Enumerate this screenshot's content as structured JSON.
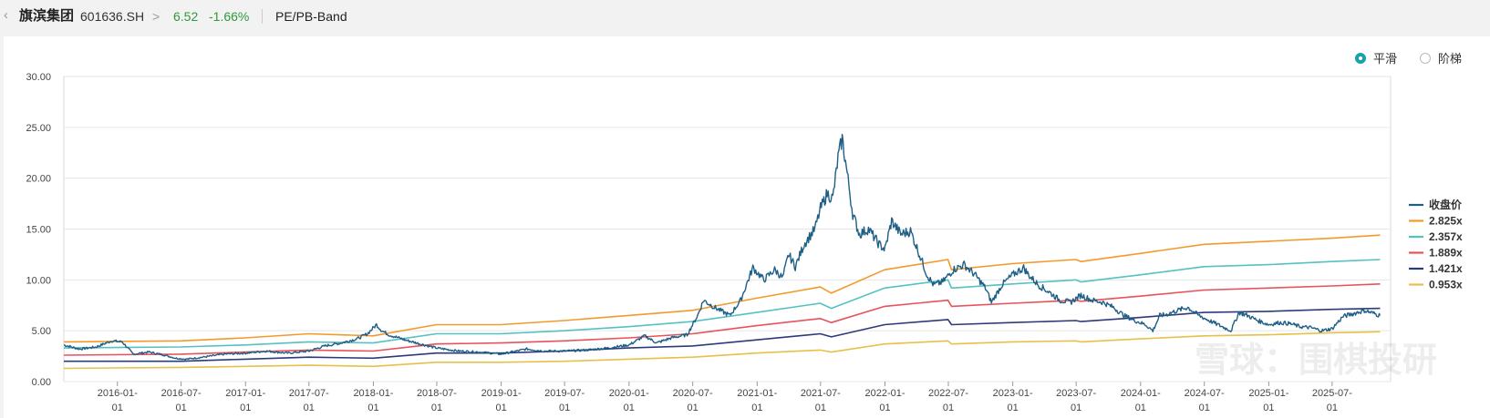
{
  "header": {
    "back_icon": "chevron-left-icon",
    "stock_name": "旗滨集团",
    "stock_code": "601636.SH",
    "separator": ">",
    "price": "6.52",
    "change": "-1.66%",
    "tab_label": "PE/PB-Band"
  },
  "toggle": {
    "smooth_label": "平滑",
    "step_label": "阶梯",
    "selected": "smooth",
    "accent_color": "#1aa0a8"
  },
  "watermark": "雪球：围棋投研",
  "chart_data": {
    "type": "line",
    "ylim": [
      0,
      30
    ],
    "yticks": [
      "0.00",
      "5.00",
      "10.00",
      "15.00",
      "20.00",
      "25.00",
      "30.00"
    ],
    "xlim": [
      "2015-08-01",
      "2025-12-15"
    ],
    "xticks": [
      {
        "date": "2016-01-01",
        "label": [
          "2016-01-",
          "01"
        ]
      },
      {
        "date": "2016-07-01",
        "label": [
          "2016-07-",
          "01"
        ]
      },
      {
        "date": "2017-01-01",
        "label": [
          "2017-01-",
          "01"
        ]
      },
      {
        "date": "2017-07-01",
        "label": [
          "2017-07-",
          "01"
        ]
      },
      {
        "date": "2018-01-01",
        "label": [
          "2018-01-",
          "01"
        ]
      },
      {
        "date": "2018-07-01",
        "label": [
          "2018-07-",
          "01"
        ]
      },
      {
        "date": "2019-01-01",
        "label": [
          "2019-01-",
          "01"
        ]
      },
      {
        "date": "2019-07-01",
        "label": [
          "2019-07-",
          "01"
        ]
      },
      {
        "date": "2020-01-01",
        "label": [
          "2020-01-",
          "01"
        ]
      },
      {
        "date": "2020-07-01",
        "label": [
          "2020-07-",
          "01"
        ]
      },
      {
        "date": "2021-01-01",
        "label": [
          "2021-01-",
          "01"
        ]
      },
      {
        "date": "2021-07-01",
        "label": [
          "2021-07-",
          "01"
        ]
      },
      {
        "date": "2022-01-01",
        "label": [
          "2022-01-",
          "01"
        ]
      },
      {
        "date": "2022-07-01",
        "label": [
          "2022-07-",
          "01"
        ]
      },
      {
        "date": "2023-01-01",
        "label": [
          "2023-01-",
          "01"
        ]
      },
      {
        "date": "2023-07-01",
        "label": [
          "2023-07-",
          "01"
        ]
      },
      {
        "date": "2024-01-01",
        "label": [
          "2024-01-",
          "01"
        ]
      },
      {
        "date": "2024-07-01",
        "label": [
          "2024-07-",
          "01"
        ]
      },
      {
        "date": "2025-01-01",
        "label": [
          "2025-01-",
          "01"
        ]
      },
      {
        "date": "2025-07-01",
        "label": [
          "2025-07-",
          "01"
        ]
      }
    ],
    "grid": true,
    "legend_position": "right",
    "series": [
      {
        "name": "收盘价",
        "color": "#1f5f86",
        "jitter": true,
        "points": [
          [
            "2015-08-01",
            3.6
          ],
          [
            "2015-09-15",
            3.2
          ],
          [
            "2015-11-01",
            3.4
          ],
          [
            "2015-12-15",
            4.0
          ],
          [
            "2016-01-15",
            3.9
          ],
          [
            "2016-02-15",
            2.7
          ],
          [
            "2016-04-01",
            2.9
          ],
          [
            "2016-05-15",
            2.6
          ],
          [
            "2016-06-15",
            2.3
          ],
          [
            "2016-07-15",
            2.2
          ],
          [
            "2016-09-01",
            2.4
          ],
          [
            "2016-11-01",
            2.7
          ],
          [
            "2017-01-01",
            2.8
          ],
          [
            "2017-03-01",
            3.0
          ],
          [
            "2017-05-01",
            2.8
          ],
          [
            "2017-07-01",
            3.0
          ],
          [
            "2017-08-15",
            3.5
          ],
          [
            "2017-10-01",
            3.8
          ],
          [
            "2017-11-15",
            4.2
          ],
          [
            "2017-12-15",
            4.7
          ],
          [
            "2018-01-10",
            5.6
          ],
          [
            "2018-01-25",
            5.0
          ],
          [
            "2018-02-15",
            4.6
          ],
          [
            "2018-04-01",
            4.1
          ],
          [
            "2018-05-15",
            3.7
          ],
          [
            "2018-07-01",
            3.3
          ],
          [
            "2018-09-01",
            3.0
          ],
          [
            "2018-11-01",
            2.9
          ],
          [
            "2019-01-01",
            2.7
          ],
          [
            "2019-03-15",
            3.2
          ],
          [
            "2019-05-01",
            3.0
          ],
          [
            "2019-07-01",
            3.0
          ],
          [
            "2019-09-01",
            3.1
          ],
          [
            "2019-11-01",
            3.3
          ],
          [
            "2020-01-01",
            3.6
          ],
          [
            "2020-02-15",
            4.5
          ],
          [
            "2020-03-20",
            3.8
          ],
          [
            "2020-05-01",
            4.3
          ],
          [
            "2020-06-15",
            4.6
          ],
          [
            "2020-07-15",
            6.5
          ],
          [
            "2020-08-01",
            8.0
          ],
          [
            "2020-09-01",
            7.3
          ],
          [
            "2020-10-15",
            6.5
          ],
          [
            "2020-11-15",
            8.0
          ],
          [
            "2020-12-01",
            9.5
          ],
          [
            "2020-12-20",
            11.2
          ],
          [
            "2021-01-20",
            10.0
          ],
          [
            "2021-02-20",
            11.0
          ],
          [
            "2021-03-15",
            10.2
          ],
          [
            "2021-04-01",
            12.5
          ],
          [
            "2021-04-20",
            11.3
          ],
          [
            "2021-05-15",
            13.5
          ],
          [
            "2021-06-15",
            15.0
          ],
          [
            "2021-07-01",
            17.0
          ],
          [
            "2021-07-20",
            18.5
          ],
          [
            "2021-08-05",
            18.0
          ],
          [
            "2021-08-20",
            22.0
          ],
          [
            "2021-09-01",
            23.9
          ],
          [
            "2021-09-15",
            20.5
          ],
          [
            "2021-10-01",
            16.5
          ],
          [
            "2021-10-20",
            14.5
          ],
          [
            "2021-11-15",
            15.0
          ],
          [
            "2021-12-15",
            13.5
          ],
          [
            "2022-01-01",
            13.0
          ],
          [
            "2022-01-20",
            15.8
          ],
          [
            "2022-02-15",
            14.5
          ],
          [
            "2022-03-15",
            14.8
          ],
          [
            "2022-04-15",
            12.0
          ],
          [
            "2022-05-01",
            10.5
          ],
          [
            "2022-05-20",
            9.5
          ],
          [
            "2022-06-15",
            9.8
          ],
          [
            "2022-07-15",
            11.0
          ],
          [
            "2022-08-15",
            11.5
          ],
          [
            "2022-09-15",
            10.5
          ],
          [
            "2022-10-15",
            9.2
          ],
          [
            "2022-11-01",
            7.8
          ],
          [
            "2022-12-01",
            9.5
          ],
          [
            "2023-01-01",
            10.5
          ],
          [
            "2023-02-01",
            11.2
          ],
          [
            "2023-02-15",
            10.5
          ],
          [
            "2023-03-15",
            9.5
          ],
          [
            "2023-04-15",
            8.8
          ],
          [
            "2023-05-15",
            8.0
          ],
          [
            "2023-06-15",
            7.8
          ],
          [
            "2023-07-15",
            8.5
          ],
          [
            "2023-08-15",
            8.0
          ],
          [
            "2023-09-15",
            7.8
          ],
          [
            "2023-10-15",
            7.3
          ],
          [
            "2023-11-15",
            6.5
          ],
          [
            "2023-12-15",
            6.0
          ],
          [
            "2024-01-15",
            5.6
          ],
          [
            "2024-02-05",
            5.0
          ],
          [
            "2024-02-25",
            6.5
          ],
          [
            "2024-03-15",
            6.6
          ],
          [
            "2024-04-15",
            7.0
          ],
          [
            "2024-05-15",
            7.3
          ],
          [
            "2024-06-15",
            6.5
          ],
          [
            "2024-07-15",
            6.0
          ],
          [
            "2024-08-15",
            5.5
          ],
          [
            "2024-09-15",
            5.0
          ],
          [
            "2024-10-08",
            6.8
          ],
          [
            "2024-11-01",
            6.5
          ],
          [
            "2024-12-01",
            6.0
          ],
          [
            "2025-01-01",
            5.6
          ],
          [
            "2025-02-01",
            5.8
          ],
          [
            "2025-03-01",
            5.7
          ],
          [
            "2025-04-01",
            5.4
          ],
          [
            "2025-05-01",
            5.3
          ],
          [
            "2025-06-01",
            5.0
          ],
          [
            "2025-07-01",
            5.2
          ],
          [
            "2025-08-01",
            6.4
          ],
          [
            "2025-09-01",
            6.7
          ],
          [
            "2025-10-01",
            7.0
          ],
          [
            "2025-11-15",
            6.5
          ]
        ]
      },
      {
        "name": "2.825x",
        "color": "#f39a2a",
        "jitter": false,
        "points": [
          [
            "2015-08-01",
            3.9
          ],
          [
            "2016-06-30",
            4.0
          ],
          [
            "2016-12-31",
            4.3
          ],
          [
            "2017-06-30",
            4.7
          ],
          [
            "2017-12-31",
            4.5
          ],
          [
            "2018-06-30",
            5.6
          ],
          [
            "2018-12-31",
            5.6
          ],
          [
            "2019-06-30",
            6.0
          ],
          [
            "2019-12-31",
            6.5
          ],
          [
            "2020-06-30",
            7.0
          ],
          [
            "2020-12-31",
            8.2
          ],
          [
            "2021-06-30",
            9.3
          ],
          [
            "2021-08-01",
            8.7
          ],
          [
            "2021-12-31",
            11.0
          ],
          [
            "2022-06-30",
            12.0
          ],
          [
            "2022-07-10",
            11.0
          ],
          [
            "2022-12-31",
            11.6
          ],
          [
            "2023-06-30",
            12.0
          ],
          [
            "2023-07-15",
            11.8
          ],
          [
            "2023-12-31",
            12.6
          ],
          [
            "2024-06-30",
            13.5
          ],
          [
            "2024-12-31",
            13.8
          ],
          [
            "2025-06-30",
            14.1
          ],
          [
            "2025-11-15",
            14.4
          ]
        ]
      },
      {
        "name": "2.357x",
        "color": "#55c1c0",
        "jitter": false,
        "points": [
          [
            "2015-08-01",
            3.3
          ],
          [
            "2016-06-30",
            3.4
          ],
          [
            "2016-12-31",
            3.6
          ],
          [
            "2017-06-30",
            3.9
          ],
          [
            "2017-12-31",
            3.8
          ],
          [
            "2018-06-30",
            4.7
          ],
          [
            "2018-12-31",
            4.7
          ],
          [
            "2019-06-30",
            5.0
          ],
          [
            "2019-12-31",
            5.4
          ],
          [
            "2020-06-30",
            5.9
          ],
          [
            "2020-12-31",
            6.8
          ],
          [
            "2021-06-30",
            7.7
          ],
          [
            "2021-08-01",
            7.2
          ],
          [
            "2021-12-31",
            9.2
          ],
          [
            "2022-06-30",
            10.0
          ],
          [
            "2022-07-10",
            9.2
          ],
          [
            "2022-12-31",
            9.6
          ],
          [
            "2023-06-30",
            10.0
          ],
          [
            "2023-07-15",
            9.8
          ],
          [
            "2023-12-31",
            10.5
          ],
          [
            "2024-06-30",
            11.3
          ],
          [
            "2024-12-31",
            11.5
          ],
          [
            "2025-06-30",
            11.8
          ],
          [
            "2025-11-15",
            12.0
          ]
        ]
      },
      {
        "name": "1.889x",
        "color": "#e8525a",
        "jitter": false,
        "points": [
          [
            "2015-08-01",
            2.6
          ],
          [
            "2016-06-30",
            2.7
          ],
          [
            "2016-12-31",
            2.9
          ],
          [
            "2017-06-30",
            3.1
          ],
          [
            "2017-12-31",
            3.0
          ],
          [
            "2018-06-30",
            3.7
          ],
          [
            "2018-12-31",
            3.8
          ],
          [
            "2019-06-30",
            4.0
          ],
          [
            "2019-12-31",
            4.3
          ],
          [
            "2020-06-30",
            4.7
          ],
          [
            "2020-12-31",
            5.5
          ],
          [
            "2021-06-30",
            6.2
          ],
          [
            "2021-08-01",
            5.8
          ],
          [
            "2021-12-31",
            7.4
          ],
          [
            "2022-06-30",
            8.0
          ],
          [
            "2022-07-10",
            7.4
          ],
          [
            "2022-12-31",
            7.7
          ],
          [
            "2023-06-30",
            8.0
          ],
          [
            "2023-07-15",
            7.9
          ],
          [
            "2023-12-31",
            8.4
          ],
          [
            "2024-06-30",
            9.0
          ],
          [
            "2024-12-31",
            9.2
          ],
          [
            "2025-06-30",
            9.4
          ],
          [
            "2025-11-15",
            9.6
          ]
        ]
      },
      {
        "name": "1.421x",
        "color": "#2d3a7a",
        "jitter": false,
        "points": [
          [
            "2015-08-01",
            2.0
          ],
          [
            "2016-06-30",
            2.0
          ],
          [
            "2016-12-31",
            2.2
          ],
          [
            "2017-06-30",
            2.4
          ],
          [
            "2017-12-31",
            2.3
          ],
          [
            "2018-06-30",
            2.8
          ],
          [
            "2018-12-31",
            2.8
          ],
          [
            "2019-06-30",
            3.0
          ],
          [
            "2019-12-31",
            3.3
          ],
          [
            "2020-06-30",
            3.5
          ],
          [
            "2020-12-31",
            4.1
          ],
          [
            "2021-06-30",
            4.7
          ],
          [
            "2021-08-01",
            4.4
          ],
          [
            "2021-12-31",
            5.6
          ],
          [
            "2022-06-30",
            6.1
          ],
          [
            "2022-07-10",
            5.6
          ],
          [
            "2022-12-31",
            5.8
          ],
          [
            "2023-06-30",
            6.0
          ],
          [
            "2023-07-15",
            5.9
          ],
          [
            "2023-12-31",
            6.3
          ],
          [
            "2024-06-30",
            6.8
          ],
          [
            "2024-12-31",
            6.9
          ],
          [
            "2025-06-30",
            7.1
          ],
          [
            "2025-11-15",
            7.2
          ]
        ]
      },
      {
        "name": "0.953x",
        "color": "#e6c04a",
        "jitter": false,
        "points": [
          [
            "2015-08-01",
            1.3
          ],
          [
            "2016-06-30",
            1.4
          ],
          [
            "2016-12-31",
            1.5
          ],
          [
            "2017-06-30",
            1.6
          ],
          [
            "2017-12-31",
            1.5
          ],
          [
            "2018-06-30",
            1.9
          ],
          [
            "2018-12-31",
            1.9
          ],
          [
            "2019-06-30",
            2.0
          ],
          [
            "2019-12-31",
            2.2
          ],
          [
            "2020-06-30",
            2.4
          ],
          [
            "2020-12-31",
            2.8
          ],
          [
            "2021-06-30",
            3.1
          ],
          [
            "2021-08-01",
            2.9
          ],
          [
            "2021-12-31",
            3.7
          ],
          [
            "2022-06-30",
            4.0
          ],
          [
            "2022-07-10",
            3.7
          ],
          [
            "2022-12-31",
            3.9
          ],
          [
            "2023-06-30",
            4.0
          ],
          [
            "2023-07-15",
            3.9
          ],
          [
            "2023-12-31",
            4.2
          ],
          [
            "2024-06-30",
            4.5
          ],
          [
            "2024-12-31",
            4.6
          ],
          [
            "2025-06-30",
            4.8
          ],
          [
            "2025-11-15",
            4.9
          ]
        ]
      }
    ]
  }
}
